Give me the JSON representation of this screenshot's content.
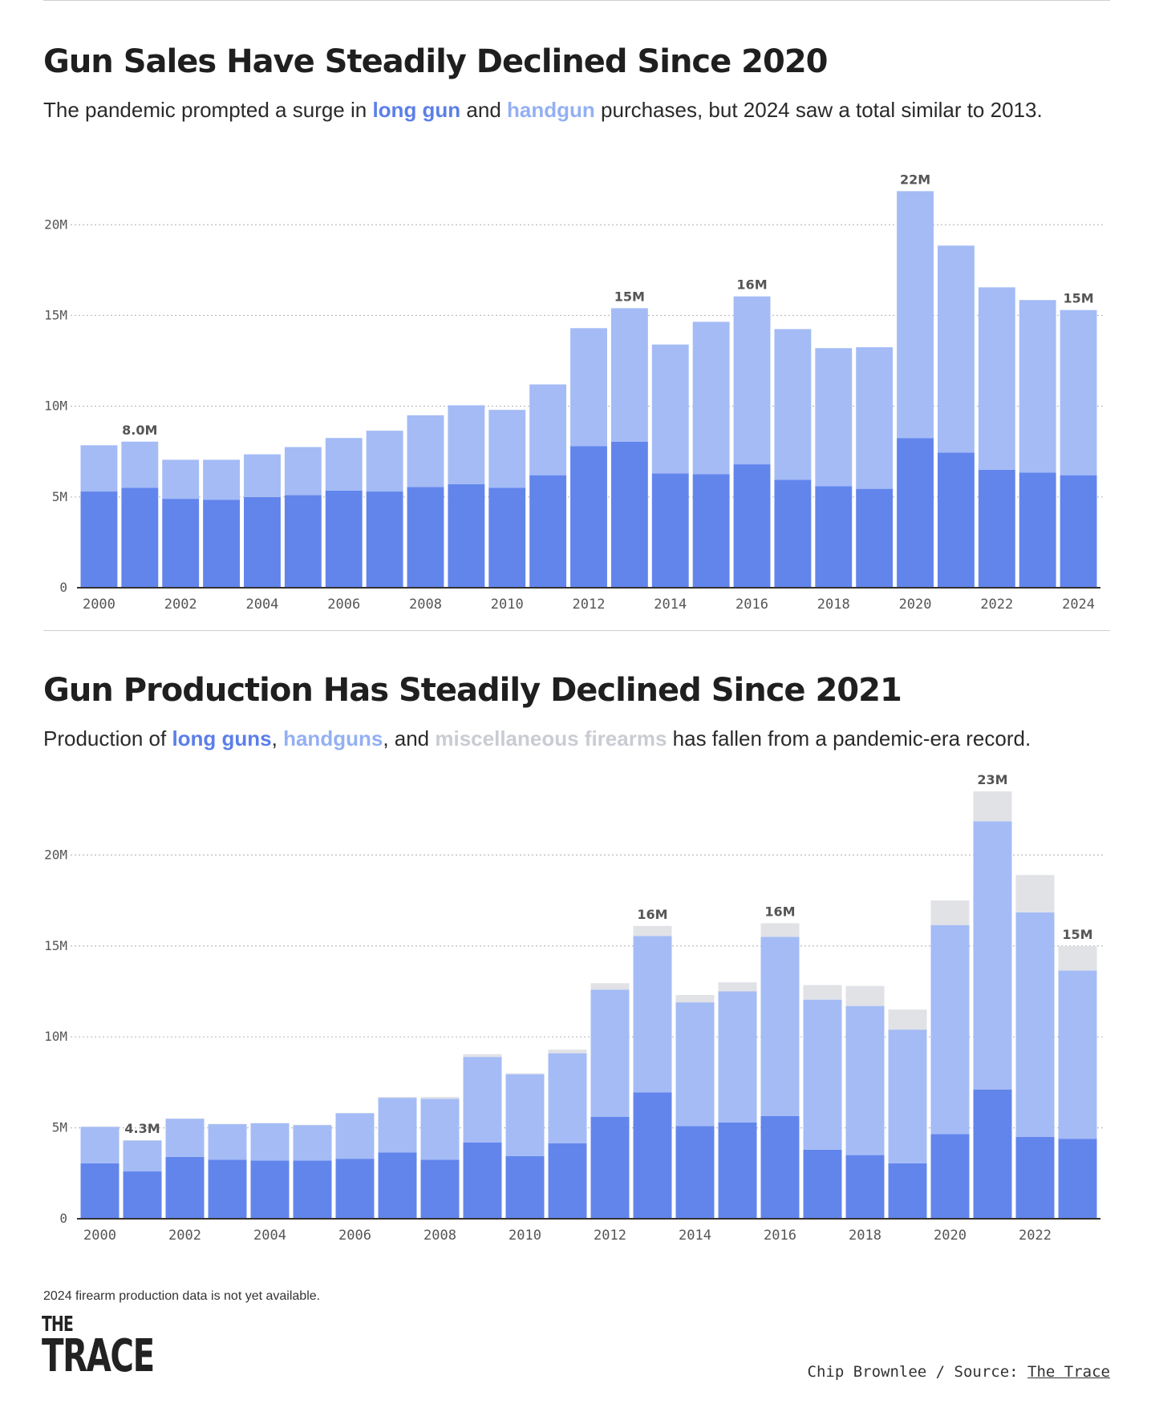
{
  "colors": {
    "long_gun": "#6285ec",
    "handgun": "#a4bbf5",
    "misc": "#e0e2e6",
    "grid": "#bdbdbd",
    "axis": "#333333"
  },
  "chart1": {
    "title": "Gun Sales Have Steadily Declined Since 2020",
    "subtitle": {
      "prefix": "The pandemic prompted a surge in ",
      "long_gun": "long gun",
      "mid": " and ",
      "handgun": "handgun",
      "suffix": " purchases, but 2024 saw a total similar to 2013."
    }
  },
  "chart2": {
    "title": "Gun Production Has Steadily Declined Since 2021",
    "subtitle": {
      "prefix": "Production of ",
      "long_guns": "long guns",
      "sep1": ", ",
      "handguns": "handguns",
      "sep2": ", and ",
      "misc": "miscellaneous firearms",
      "suffix": " has fallen from a pandemic-era record."
    }
  },
  "chart_data": [
    {
      "type": "bar",
      "stacked": true,
      "title": "Gun Sales Have Steadily Declined Since 2020",
      "ylim": [
        0,
        22
      ],
      "yticks": [
        0,
        5,
        10,
        15,
        20
      ],
      "ytick_labels": [
        "0",
        "5M",
        "10M",
        "15M",
        "20M"
      ],
      "grid": true,
      "categories": [
        "2000",
        "2001",
        "2002",
        "2003",
        "2004",
        "2005",
        "2006",
        "2007",
        "2008",
        "2009",
        "2010",
        "2011",
        "2012",
        "2013",
        "2014",
        "2015",
        "2016",
        "2017",
        "2018",
        "2019",
        "2020",
        "2021",
        "2022",
        "2023",
        "2024"
      ],
      "xtick_labels": [
        "2000",
        "2002",
        "2004",
        "2006",
        "2008",
        "2010",
        "2012",
        "2014",
        "2016",
        "2018",
        "2020",
        "2022",
        "2024"
      ],
      "series": [
        {
          "name": "long gun",
          "values": [
            5.3,
            5.5,
            4.9,
            4.85,
            5.0,
            5.1,
            5.35,
            5.3,
            5.55,
            5.7,
            5.5,
            6.2,
            7.8,
            8.05,
            6.3,
            6.25,
            6.8,
            5.95,
            5.6,
            5.45,
            8.25,
            7.45,
            6.5,
            6.35,
            6.2
          ]
        },
        {
          "name": "handgun",
          "values": [
            2.55,
            2.55,
            2.15,
            2.2,
            2.35,
            2.65,
            2.9,
            3.35,
            3.95,
            4.35,
            4.3,
            5.0,
            6.5,
            7.35,
            7.1,
            8.4,
            9.25,
            8.3,
            7.6,
            7.8,
            13.6,
            11.4,
            10.05,
            9.5,
            9.1
          ]
        }
      ],
      "data_labels": [
        {
          "category": "2001",
          "text": "8.0M"
        },
        {
          "category": "2013",
          "text": "15M"
        },
        {
          "category": "2016",
          "text": "16M"
        },
        {
          "category": "2020",
          "text": "22M"
        },
        {
          "category": "2024",
          "text": "15M"
        }
      ]
    },
    {
      "type": "bar",
      "stacked": true,
      "title": "Gun Production Has Steadily Declined Since 2021",
      "ylim": [
        0,
        23.5
      ],
      "yticks": [
        0,
        5,
        10,
        15,
        20
      ],
      "ytick_labels": [
        "0",
        "5M",
        "10M",
        "15M",
        "20M"
      ],
      "grid": true,
      "categories": [
        "2000",
        "2001",
        "2002",
        "2003",
        "2004",
        "2005",
        "2006",
        "2007",
        "2008",
        "2009",
        "2010",
        "2011",
        "2012",
        "2013",
        "2014",
        "2015",
        "2016",
        "2017",
        "2018",
        "2019",
        "2020",
        "2021",
        "2022",
        "2023"
      ],
      "xtick_labels": [
        "2000",
        "2002",
        "2004",
        "2006",
        "2008",
        "2010",
        "2012",
        "2014",
        "2016",
        "2018",
        "2020",
        "2022"
      ],
      "series": [
        {
          "name": "long guns",
          "values": [
            3.05,
            2.6,
            3.4,
            3.25,
            3.2,
            3.2,
            3.3,
            3.65,
            3.25,
            4.2,
            3.45,
            4.15,
            5.6,
            6.95,
            5.1,
            5.3,
            5.65,
            3.8,
            3.5,
            3.05,
            4.65,
            7.1,
            4.5,
            4.4
          ]
        },
        {
          "name": "handguns",
          "values": [
            2.0,
            1.7,
            2.1,
            1.95,
            2.05,
            1.95,
            2.5,
            3.0,
            3.35,
            4.7,
            4.5,
            4.95,
            7.0,
            8.6,
            6.8,
            7.2,
            9.85,
            8.25,
            8.2,
            7.35,
            11.5,
            14.75,
            12.35,
            9.25
          ]
        },
        {
          "name": "miscellaneous firearms",
          "values": [
            0.02,
            0.02,
            0.02,
            0.02,
            0.02,
            0.02,
            0.02,
            0.05,
            0.1,
            0.15,
            0.05,
            0.2,
            0.35,
            0.55,
            0.4,
            0.5,
            0.75,
            0.8,
            1.1,
            1.1,
            1.35,
            1.65,
            2.05,
            1.35
          ]
        }
      ],
      "data_labels": [
        {
          "category": "2001",
          "text": "4.3M"
        },
        {
          "category": "2013",
          "text": "16M"
        },
        {
          "category": "2016",
          "text": "16M"
        },
        {
          "category": "2021",
          "text": "23M"
        },
        {
          "category": "2023",
          "text": "15M"
        }
      ]
    }
  ],
  "footer": {
    "note": "2024 firearm production data is not yet available.",
    "logo_line1": "THE",
    "logo_line2": "TRACE",
    "credit_prefix": "Chip Brownlee / Source: ",
    "credit_source": "The Trace"
  }
}
